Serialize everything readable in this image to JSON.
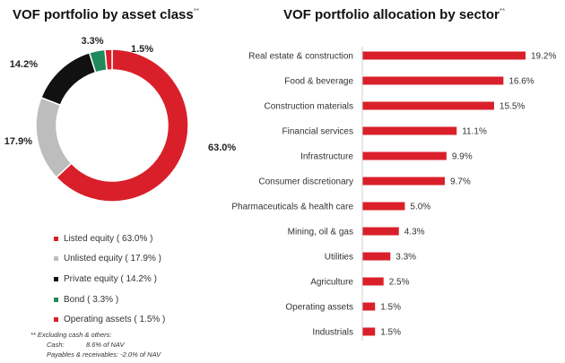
{
  "donut": {
    "title": "VOF portfolio by asset class",
    "title_mark": "**"
  },
  "bars": {
    "title": "VOF portfolio allocation by sector",
    "title_mark": "**"
  },
  "colors": {
    "listed": "#d9202a",
    "unlisted": "#bdbdbd",
    "private": "#111111",
    "bond": "#1f8a5b",
    "operating": "#d9202a",
    "bar": "#d9202a"
  },
  "legend": [
    {
      "label": "Listed equity ( 63.0% )",
      "color": "#d9202a"
    },
    {
      "label": "Unlisted equity ( 17.9% )",
      "color": "#bdbdbd"
    },
    {
      "label": "Private equity ( 14.2% )",
      "color": "#111111"
    },
    {
      "label": "Bond ( 3.3% )",
      "color": "#1f8a5b"
    },
    {
      "label": "Operating assets ( 1.5% )",
      "color": "#d9202a"
    }
  ],
  "footnote": {
    "line1": "** Excluding cash & others:",
    "cash_label": "Cash:",
    "cash_value": "8.6% of NAV",
    "pay_label": "Payables & receivables:",
    "pay_value": "-2.0% of NAV"
  },
  "chart_data": [
    {
      "type": "pie",
      "title": "VOF portfolio by asset class",
      "slices": [
        {
          "name": "Listed equity",
          "value": 63.0,
          "label": "63.0%",
          "color": "#d9202a"
        },
        {
          "name": "Unlisted equity",
          "value": 17.9,
          "label": "17.9%",
          "color": "#bdbdbd"
        },
        {
          "name": "Private equity",
          "value": 14.2,
          "label": "14.2%",
          "color": "#111111"
        },
        {
          "name": "Bond",
          "value": 3.3,
          "label": "3.3%",
          "color": "#1f8a5b"
        },
        {
          "name": "Operating assets",
          "value": 1.5,
          "label": "1.5%",
          "color": "#d9202a"
        }
      ]
    },
    {
      "type": "bar",
      "orientation": "horizontal",
      "title": "VOF portfolio allocation by sector",
      "categories": [
        "Real estate & construction",
        "Food & beverage",
        "Construction materials",
        "Financial services",
        "Infrastructure",
        "Consumer discretionary",
        "Pharmaceuticals & health care",
        "Mining, oil & gas",
        "Utilities",
        "Agriculture",
        "Operating assets",
        "Industrials"
      ],
      "values": [
        19.2,
        16.6,
        15.5,
        11.1,
        9.9,
        9.7,
        5.0,
        4.3,
        3.3,
        2.5,
        1.5,
        1.5
      ],
      "labels": [
        "19.2%",
        "16.6%",
        "15.5%",
        "11.1%",
        "9.9%",
        "9.7%",
        "5.0%",
        "4.3%",
        "3.3%",
        "2.5%",
        "1.5%",
        "1.5%"
      ],
      "xlim": [
        0,
        19.2
      ]
    }
  ]
}
